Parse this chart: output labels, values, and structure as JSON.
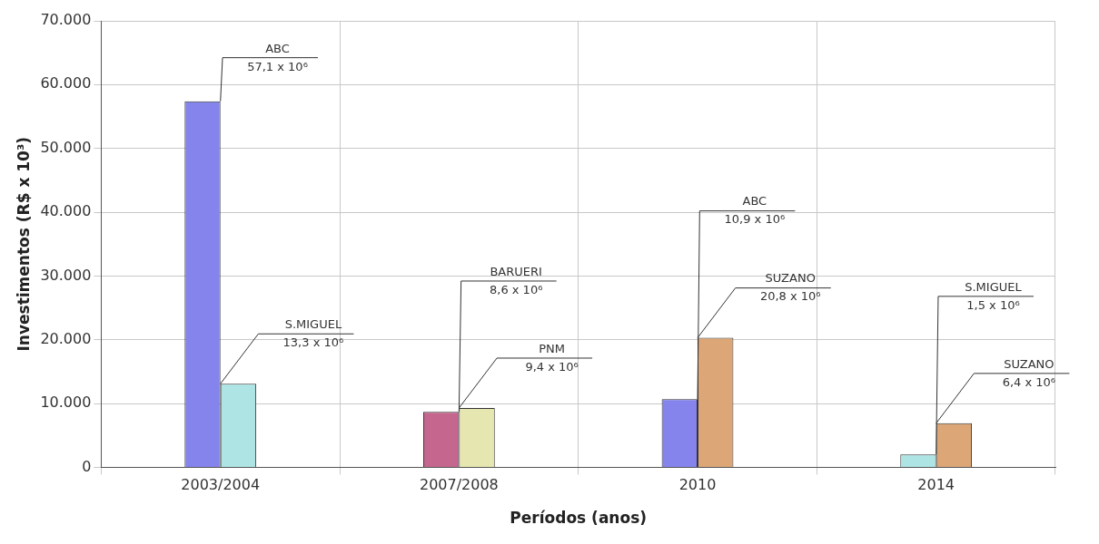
{
  "chart_data": {
    "type": "bar",
    "xlabel": "Períodos (anos)",
    "ylabel": "Investimentos (R$ x 10³)",
    "categories": [
      "2003/2004",
      "2007/2008",
      "2010",
      "2014"
    ],
    "series": [
      {
        "colors": [
          "#8484ec",
          "#c4668e",
          "#8484ec",
          "#aee4e4"
        ],
        "values": [
          57400,
          8700,
          10700,
          2000
        ]
      },
      {
        "colors": [
          "#aee4e4",
          "#e6e6b0",
          "#dca676",
          "#dca676"
        ],
        "values": [
          13100,
          9300,
          20300,
          6900
        ]
      }
    ],
    "annotations": [
      {
        "text": "ABC",
        "x": "2003/2004",
        "y": 57400
      },
      {
        "text": "57,1 x 10⁶",
        "x": "2003/2004",
        "y": 57400
      },
      {
        "text": "S.MIGUEL",
        "x": "2003/2004",
        "y": 13100
      },
      {
        "text": "13,3 x 10⁶",
        "x": "2003/2004",
        "y": 13100
      },
      {
        "text": "BARUERI",
        "x": "2007/2008",
        "y": 8700
      },
      {
        "text": "8,6 x 10⁶",
        "x": "2007/2008",
        "y": 8700
      },
      {
        "text": "PNM",
        "x": "2007/2008",
        "y": 9300
      },
      {
        "text": "9,4 x 10⁶",
        "x": "2007/2008",
        "y": 9300
      },
      {
        "text": "ABC",
        "x": "2010",
        "y": 10700
      },
      {
        "text": "10,9 x 10⁶",
        "x": "2010",
        "y": 10700
      },
      {
        "text": "SUZANO",
        "x": "2010",
        "y": 20300
      },
      {
        "text": "20,8 x 10⁶",
        "x": "2010",
        "y": 20300
      },
      {
        "text": "S.MIGUEL",
        "x": "2014",
        "y": 2000
      },
      {
        "text": "1,5 x 10⁶",
        "x": "2014",
        "y": 2000
      },
      {
        "text": "SUZANO",
        "x": "2014",
        "y": 6900
      },
      {
        "text": "6,4 x 10⁶",
        "x": "2014",
        "y": 6900
      }
    ],
    "ylim": [
      0,
      70000
    ],
    "yticks": [
      {
        "value": 0,
        "label": "0"
      },
      {
        "value": 10000,
        "label": "10.000"
      },
      {
        "value": 20000,
        "label": "20.000"
      },
      {
        "value": 30000,
        "label": "30.000"
      },
      {
        "value": 40000,
        "label": "40.000"
      },
      {
        "value": 50000,
        "label": "50.000"
      },
      {
        "value": 60000,
        "label": "60.000"
      },
      {
        "value": 70000,
        "label": "70.000"
      }
    ],
    "grid": true
  }
}
